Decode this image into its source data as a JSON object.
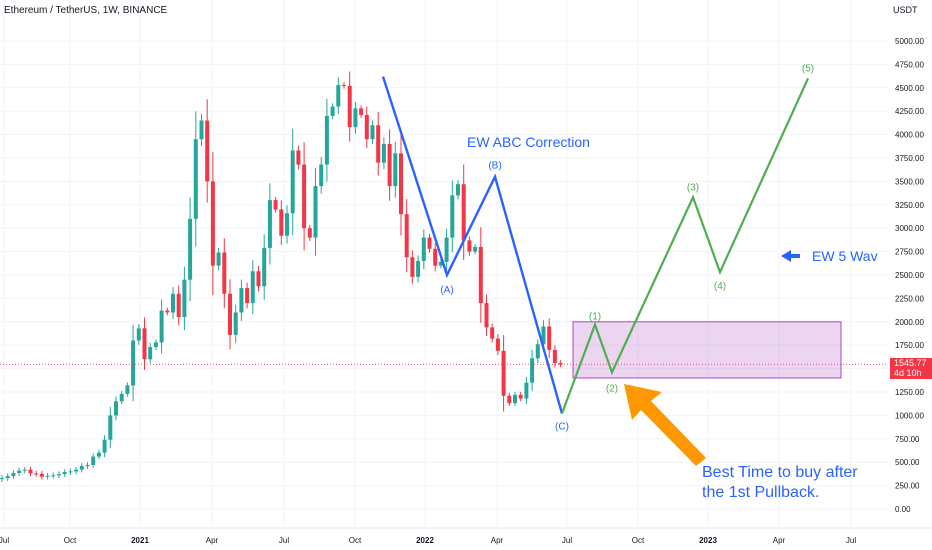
{
  "header": {
    "symbol_title": "Ethereum / TetherUS, 1W, BINANCE",
    "unit": "USDT"
  },
  "price_badge": {
    "price": "1545.77",
    "countdown": "4d 10h"
  },
  "colors": {
    "up": "#26a69a",
    "down": "#f23645",
    "abc_line": "#2962ff",
    "wave_line": "#4caf50",
    "zone_fill": "rgba(186,104,200,0.28)",
    "zone_border": "#ab47bc",
    "arrow": "#ff9800",
    "grid": "#f0f3fa"
  },
  "annotations": {
    "abc_title": "EW ABC Correction",
    "ew5_label": "EW 5 Wav",
    "buy_line1": "Best Time to buy after",
    "buy_line2": "the 1st Pullback."
  },
  "chart_data": {
    "type": "candlestick",
    "title": "Ethereum / TetherUS, 1W, BINANCE",
    "y_unit": "USDT",
    "y_range": [
      -100,
      5250
    ],
    "y_ticks": [
      "5000.00",
      "4750.00",
      "4500.00",
      "4250.00",
      "4000.00",
      "3750.00",
      "3500.00",
      "3250.00",
      "3000.00",
      "2750.00",
      "2500.00",
      "2250.00",
      "2000.00",
      "1750.00",
      "1500.00",
      "1250.00",
      "1000.00",
      "750.00",
      "500.00",
      "250.00",
      "0.00"
    ],
    "x_ticks": [
      "Jul",
      "Oct",
      "2021",
      "Apr",
      "Jul",
      "Oct",
      "2022",
      "Apr",
      "Jul",
      "Oct",
      "2023",
      "Apr",
      "Jul"
    ],
    "current_price": 1545.77,
    "close_series": [
      330,
      352,
      385,
      410,
      420,
      380,
      375,
      345,
      355,
      360,
      372,
      395,
      402,
      420,
      460,
      470,
      560,
      602,
      740,
      1000,
      1150,
      1230,
      1320,
      1800,
      1930,
      1600,
      1730,
      1780,
      2120,
      2100,
      2300,
      2050,
      2450,
      3100,
      3950,
      4150,
      3500,
      2600,
      2740,
      2300,
      1860,
      2100,
      2360,
      2200,
      2540,
      2380,
      2790,
      3300,
      3200,
      2920,
      3160,
      3830,
      3680,
      3000,
      2900,
      3450,
      3680,
      4200,
      4300,
      4530,
      4520,
      4080,
      4280,
      4210,
      3950,
      4100,
      3700,
      3900,
      3450,
      3800,
      3150,
      2690,
      2480,
      2650,
      2900,
      2780,
      2600,
      2640,
      2900,
      3350,
      3470,
      2870,
      2750,
      2800,
      2200,
      1940,
      1820,
      1690,
      1210,
      1130,
      1220,
      1180,
      1350,
      1610,
      1760,
      1950,
      1700,
      1560,
      1545
    ],
    "abc_wave": [
      {
        "label": "(A)",
        "price": 2500
      },
      {
        "label": "(B)",
        "price": 3550
      },
      {
        "label": "(C)",
        "price": 1020
      }
    ],
    "impulse_wave": [
      {
        "label": "(1)",
        "price": 1970
      },
      {
        "label": "(2)",
        "price": 1460
      },
      {
        "label": "(3)",
        "price": 3330
      },
      {
        "label": "(4)",
        "price": 2530
      },
      {
        "label": "(5)",
        "price": 4600
      }
    ],
    "buy_zone": {
      "low": 1400,
      "high": 2000
    }
  }
}
